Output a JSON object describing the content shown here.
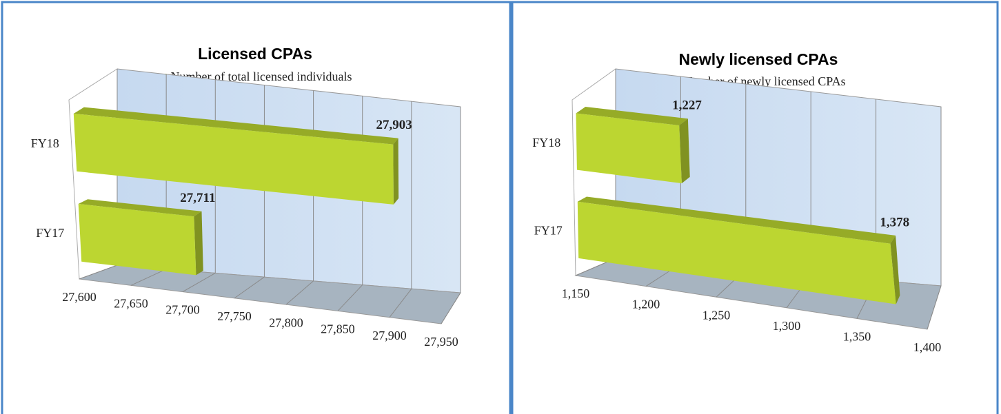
{
  "chart_data": [
    {
      "type": "bar",
      "title": "Licensed CPAs",
      "categories": [
        "FY18",
        "FY17"
      ],
      "series": [
        {
          "name": "Number of total licensed individuals",
          "color": "#bcd631",
          "values": [
            27903,
            27711
          ],
          "value_labels": [
            "27,903",
            "27,711"
          ]
        }
      ],
      "xlim": [
        27600,
        27950
      ],
      "xticks": [
        {
          "value": 27600,
          "label": "27,600"
        },
        {
          "value": 27650,
          "label": "27,650"
        },
        {
          "value": 27700,
          "label": "27,700"
        },
        {
          "value": 27750,
          "label": "27,750"
        },
        {
          "value": 27800,
          "label": "27,800"
        },
        {
          "value": 27850,
          "label": "27,850"
        },
        {
          "value": 27900,
          "label": "27,900"
        },
        {
          "value": 27950,
          "label": "27,950"
        }
      ],
      "grid": true
    },
    {
      "type": "bar",
      "title": "Newly licensed CPAs",
      "categories": [
        "FY18",
        "FY17"
      ],
      "series": [
        {
          "name": "Number of newly licensed CPAs",
          "color": "#bcd631",
          "values": [
            1227,
            1378
          ],
          "value_labels": [
            "1,227",
            "1,378"
          ]
        }
      ],
      "xlim": [
        1150,
        1400
      ],
      "xticks": [
        {
          "value": 1150,
          "label": "1,150"
        },
        {
          "value": 1200,
          "label": "1,200"
        },
        {
          "value": 1250,
          "label": "1,250"
        },
        {
          "value": 1300,
          "label": "1,300"
        },
        {
          "value": 1350,
          "label": "1,350"
        },
        {
          "value": 1400,
          "label": "1,400"
        }
      ],
      "grid": true
    }
  ]
}
